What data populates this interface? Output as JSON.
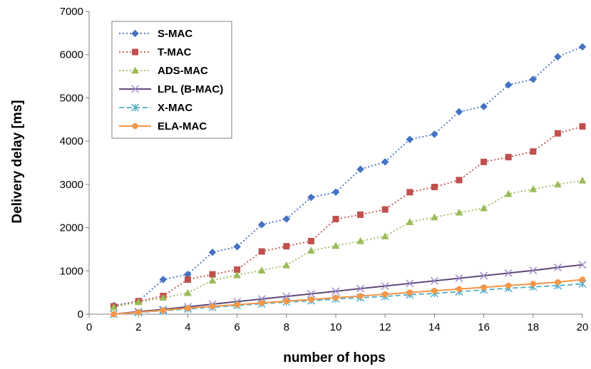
{
  "chart_data": {
    "type": "line",
    "xlabel": "number of hops",
    "ylabel": "Delivery delay [ms]",
    "xlim": [
      0,
      20
    ],
    "ylim": [
      0,
      7000
    ],
    "x_ticks": [
      "0",
      "2",
      "4",
      "6",
      "8",
      "10",
      "12",
      "14",
      "16",
      "18",
      "20"
    ],
    "y_ticks": [
      "0",
      "1000",
      "2000",
      "3000",
      "4000",
      "5000",
      "6000",
      "7000"
    ],
    "grid": false,
    "legend_position": "top-left",
    "x": [
      1,
      2,
      3,
      4,
      5,
      6,
      7,
      8,
      9,
      10,
      11,
      12,
      13,
      14,
      15,
      16,
      17,
      18,
      19,
      20
    ],
    "series": [
      {
        "name": "S-MAC",
        "color": "#4472C4",
        "line_style": "dotted",
        "marker": "diamond",
        "values": [
          200,
          300,
          800,
          920,
          1430,
          1560,
          2070,
          2200,
          2700,
          2820,
          3350,
          3520,
          4040,
          4160,
          4680,
          4800,
          5300,
          5430,
          5950,
          6180
        ]
      },
      {
        "name": "T-MAC",
        "color": "#C0504D",
        "line_style": "dotted",
        "marker": "square",
        "values": [
          180,
          300,
          420,
          800,
          920,
          1030,
          1450,
          1570,
          1690,
          2200,
          2300,
          2420,
          2820,
          2940,
          3100,
          3520,
          3630,
          3760,
          4180,
          4340
        ]
      },
      {
        "name": "ADS-MAC",
        "color": "#9BBB59",
        "line_style": "dotted",
        "marker": "triangle",
        "values": [
          160,
          280,
          380,
          490,
          780,
          900,
          1010,
          1130,
          1470,
          1580,
          1690,
          1800,
          2130,
          2240,
          2350,
          2450,
          2780,
          2890,
          3000,
          3090
        ]
      },
      {
        "name": "LPL (B-MAC)",
        "color": "#604A7B",
        "line_style": "solid",
        "marker": "x",
        "values": [
          0,
          60,
          110,
          170,
          230,
          290,
          350,
          410,
          470,
          530,
          590,
          650,
          710,
          770,
          830,
          890,
          950,
          1010,
          1080,
          1140
        ]
      },
      {
        "name": "X-MAC",
        "color": "#4BACC6",
        "line_style": "dashed",
        "marker": "asterisk",
        "values": [
          0,
          40,
          80,
          120,
          160,
          200,
          240,
          280,
          310,
          350,
          380,
          410,
          450,
          480,
          520,
          560,
          600,
          630,
          660,
          700
        ]
      },
      {
        "name": "ELA-MAC",
        "color": "#F79646",
        "line_style": "solid",
        "marker": "circle",
        "values": [
          0,
          45,
          90,
          140,
          180,
          220,
          260,
          300,
          340,
          380,
          420,
          460,
          500,
          540,
          580,
          620,
          660,
          700,
          740,
          800
        ]
      }
    ]
  }
}
